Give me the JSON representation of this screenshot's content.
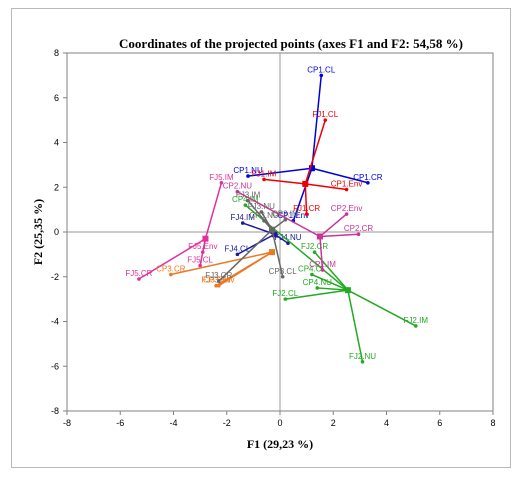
{
  "chart_data": {
    "type": "scatter",
    "title": "Coordinates of the projected points (axes F1 and F2: 54,58 %)",
    "xlabel": "F1 (29,23 %)",
    "ylabel": "F2 (25,35 %)",
    "xlim": [
      -8,
      8
    ],
    "ylim": [
      -8,
      8
    ],
    "xticks": [
      "-8",
      "-6",
      "-4",
      "-2",
      "0",
      "2",
      "4",
      "6",
      "8"
    ],
    "yticks": [
      "-8",
      "-6",
      "-4",
      "-2",
      "0",
      "2",
      "4",
      "6",
      "8"
    ],
    "grid": false,
    "groups": [
      {
        "color": "#0000dd",
        "center": [
          1.2,
          2.85
        ],
        "points": [
          {
            "label": "CP1.CL",
            "x": 1.55,
            "y": 7.0
          },
          {
            "label": "CP1.CR",
            "x": 3.3,
            "y": 2.2
          },
          {
            "label": "CP1.NU",
            "x": -1.2,
            "y": 2.5
          },
          {
            "label": "CP1.Env",
            "x": 0.5,
            "y": 0.5
          }
        ]
      },
      {
        "color": "#ee0000",
        "center": [
          0.95,
          2.15
        ],
        "points": [
          {
            "label": "FJ1.CL",
            "x": 1.7,
            "y": 5.0
          },
          {
            "label": "CP1.Env",
            "x": 2.5,
            "y": 1.9
          },
          {
            "label": "FJ1.IM",
            "x": -0.6,
            "y": 2.35
          },
          {
            "label": "FJ1.CR",
            "x": 1.0,
            "y": 0.8
          }
        ]
      },
      {
        "color": "#e0309a",
        "center": [
          -2.8,
          -0.3
        ],
        "points": [
          {
            "label": "FJ5.IM",
            "x": -2.2,
            "y": 2.2
          },
          {
            "label": "FJ5.CL",
            "x": -3.0,
            "y": -1.5
          },
          {
            "label": "FJ5.CR",
            "x": -5.3,
            "y": -2.1
          },
          {
            "label": "FJ5.Env",
            "x": -2.9,
            "y": -0.9
          }
        ]
      },
      {
        "color": "#1a1a9a",
        "center": [
          -0.2,
          -0.1
        ],
        "points": [
          {
            "label": "FJ4.IM",
            "x": -1.4,
            "y": 0.4
          },
          {
            "label": "FJ4.NU",
            "x": 0.3,
            "y": -0.5
          },
          {
            "label": "FJ4.CL",
            "x": -1.6,
            "y": -1.0
          }
        ]
      },
      {
        "color": "#ee7722",
        "center": [
          -0.3,
          -0.9
        ],
        "points": [
          {
            "label": "CP3.CR",
            "x": -4.1,
            "y": -1.9
          },
          {
            "label": "CP3.Env",
            "x": -2.3,
            "y": -2.4
          },
          {
            "label": "FJ3.Env",
            "x": -2.4,
            "y": -2.4
          }
        ]
      },
      {
        "color": "#22aa22",
        "center": [
          2.55,
          -2.6
        ],
        "points": [
          {
            "label": "FJ2.IM",
            "x": 5.1,
            "y": -4.2
          },
          {
            "label": "FJ2.NU",
            "x": 3.1,
            "y": -5.8
          },
          {
            "label": "FJ2.CL",
            "x": 0.2,
            "y": -3.0
          },
          {
            "label": "FJ2.CR",
            "x": 1.3,
            "y": -0.9
          },
          {
            "label": "CP4.NU",
            "x": 1.4,
            "y": -2.5
          },
          {
            "label": "CP4.IM",
            "x": -1.3,
            "y": 1.2
          },
          {
            "label": "CP4.CL",
            "x": 1.2,
            "y": -1.9
          }
        ]
      },
      {
        "color": "#cc3399",
        "center": [
          1.5,
          -0.2
        ],
        "points": [
          {
            "label": "CP2.IM",
            "x": 1.6,
            "y": -1.7
          },
          {
            "label": "CP2.CR",
            "x": 2.95,
            "y": -0.1
          },
          {
            "label": "CP2.Env",
            "x": 2.5,
            "y": 0.8
          },
          {
            "label": "CP2.NU",
            "x": -1.6,
            "y": 1.8
          }
        ]
      },
      {
        "color": "#666666",
        "center": [
          -0.3,
          0.1
        ],
        "points": [
          {
            "label": "FJ3.IM",
            "x": -1.2,
            "y": 1.4
          },
          {
            "label": "FJ3.NU",
            "x": -0.7,
            "y": 0.9
          },
          {
            "label": "CP3.NU",
            "x": -0.6,
            "y": 0.5
          },
          {
            "label": "CP3.CL",
            "x": 0.1,
            "y": -2.0
          },
          {
            "label": "CP3.IM",
            "x": 0.2,
            "y": 0.55
          },
          {
            "label": "FJ3.CR",
            "x": -2.3,
            "y": -2.2
          }
        ]
      }
    ]
  }
}
